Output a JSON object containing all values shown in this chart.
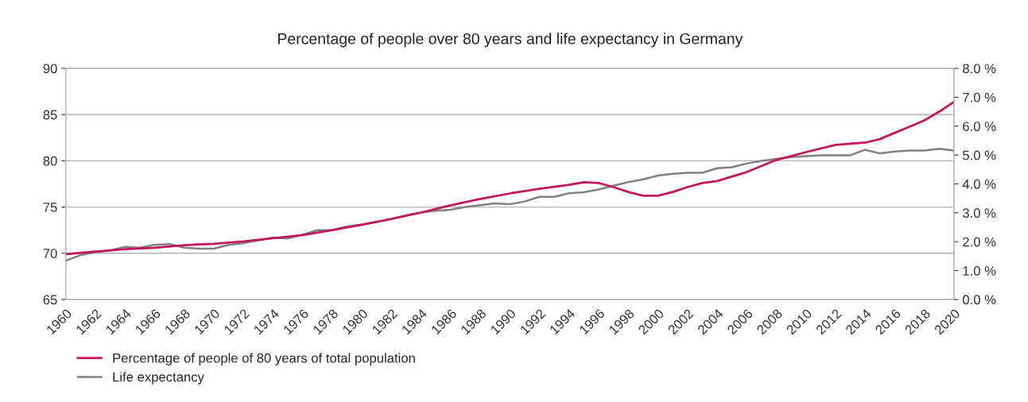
{
  "chart_data": {
    "type": "line",
    "title": "Percentage of people over 80 years and life expectancy in Germany",
    "xlim": [
      1960,
      2020
    ],
    "xticks": [
      1960,
      1962,
      1964,
      1966,
      1968,
      1970,
      1972,
      1974,
      1976,
      1978,
      1980,
      1982,
      1984,
      1986,
      1988,
      1990,
      1992,
      1994,
      1996,
      1998,
      2000,
      2002,
      2004,
      2006,
      2008,
      2010,
      2012,
      2014,
      2016,
      2018,
      2020
    ],
    "ylim": [
      65,
      90
    ],
    "yticks": [
      65,
      70,
      75,
      80,
      85,
      90
    ],
    "y2lim": [
      0,
      8
    ],
    "y2ticks": [
      {
        "value": 0,
        "label": "0.0 %"
      },
      {
        "value": 1,
        "label": "1.0 %"
      },
      {
        "value": 2,
        "label": "2.0 %"
      },
      {
        "value": 3,
        "label": "3.0 %"
      },
      {
        "value": 4,
        "label": "4.0 %"
      },
      {
        "value": 5,
        "label": "5.0 %"
      },
      {
        "value": 6,
        "label": "6.0 %"
      },
      {
        "value": 7,
        "label": "7.0 %"
      },
      {
        "value": 8,
        "label": "8.0 %"
      }
    ],
    "grid": "y",
    "legend": "bottom left",
    "marker": "none",
    "line_style": "solid",
    "series": [
      {
        "name": "Percentage of people of 80 years of total population",
        "color": "#c0185a",
        "axis": "y2",
        "x": [
          1960,
          1962,
          1964,
          1966,
          1968,
          1970,
          1972,
          1974,
          1976,
          1978,
          1980,
          1982,
          1984,
          1986,
          1988,
          1990,
          1992,
          1994,
          1995,
          1996,
          1997,
          1998,
          1999,
          2000,
          2001,
          2002,
          2003,
          2004,
          2006,
          2008,
          2010,
          2012,
          2014,
          2015,
          2016,
          2017,
          2018,
          2019,
          2020
        ],
        "values": [
          1.57,
          1.66,
          1.74,
          1.79,
          1.88,
          1.93,
          2.01,
          2.12,
          2.23,
          2.4,
          2.59,
          2.79,
          3.01,
          3.26,
          3.48,
          3.67,
          3.83,
          3.97,
          4.06,
          4.03,
          3.89,
          3.72,
          3.59,
          3.59,
          3.72,
          3.89,
          4.03,
          4.1,
          4.41,
          4.83,
          5.1,
          5.35,
          5.43,
          5.55,
          5.77,
          5.98,
          6.2,
          6.5,
          6.84
        ]
      },
      {
        "name": "Life expectancy",
        "color": "#808080",
        "axis": "y",
        "x": [
          1960,
          1961,
          1962,
          1963,
          1964,
          1965,
          1966,
          1967,
          1968,
          1969,
          1970,
          1971,
          1972,
          1973,
          1974,
          1975,
          1976,
          1977,
          1978,
          1979,
          1980,
          1981,
          1982,
          1983,
          1984,
          1985,
          1986,
          1987,
          1988,
          1989,
          1990,
          1991,
          1992,
          1993,
          1994,
          1995,
          1996,
          1997,
          1998,
          1999,
          2000,
          2001,
          2002,
          2003,
          2004,
          2005,
          2006,
          2007,
          2008,
          2009,
          2010,
          2011,
          2012,
          2013,
          2014,
          2015,
          2016,
          2017,
          2018,
          2019,
          2020
        ],
        "values": [
          69.2,
          69.8,
          70.1,
          70.3,
          70.7,
          70.6,
          70.9,
          71.0,
          70.6,
          70.5,
          70.5,
          70.9,
          71.1,
          71.4,
          71.7,
          71.6,
          72.0,
          72.5,
          72.5,
          72.9,
          73.1,
          73.4,
          73.7,
          74.1,
          74.4,
          74.6,
          74.7,
          75.0,
          75.2,
          75.4,
          75.3,
          75.6,
          76.1,
          76.1,
          76.5,
          76.6,
          76.9,
          77.3,
          77.7,
          78.0,
          78.4,
          78.6,
          78.7,
          78.7,
          79.2,
          79.3,
          79.7,
          80.0,
          80.2,
          80.4,
          80.5,
          80.6,
          80.6,
          80.6,
          81.2,
          80.8,
          81.0,
          81.1,
          81.1,
          81.3,
          81.1
        ]
      }
    ]
  }
}
